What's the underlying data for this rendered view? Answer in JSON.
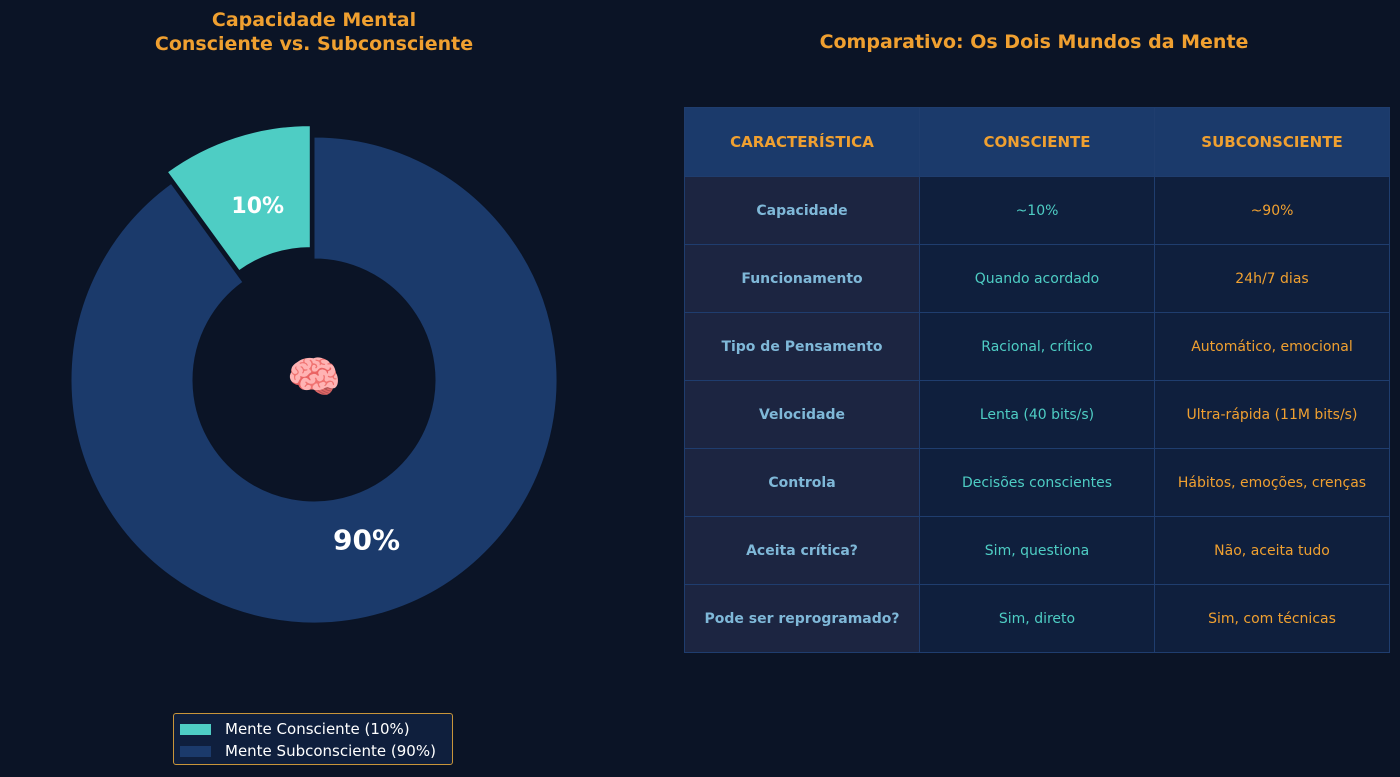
{
  "chart_data": {
    "type": "pie",
    "title": "Capacidade Mental\nConsciente vs. Subconsciente",
    "categories": [
      "Mente Consciente (10%)",
      "Mente Subconsciente (90%)"
    ],
    "values": [
      10,
      90
    ],
    "value_labels": [
      "10%",
      "90%"
    ],
    "colors": [
      "#4ecdc4",
      "#1b3a6b"
    ],
    "center_label": "🧠"
  },
  "table": {
    "title": "Comparativo: Os Dois Mundos da Mente",
    "header": [
      "CARACTERÍSTICA",
      "CONSCIENTE",
      "SUBCONSCIENTE"
    ],
    "rows": [
      [
        "Capacidade",
        "~10%",
        "~90%"
      ],
      [
        "Funcionamento",
        "Quando acordado",
        "24h/7 dias"
      ],
      [
        "Tipo de Pensamento",
        "Racional, crítico",
        "Automático, emocional"
      ],
      [
        "Velocidade",
        "Lenta (40 bits/s)",
        "Ultra-rápida (11M bits/s)"
      ],
      [
        "Controla",
        "Decisões conscientes",
        "Hábitos, emoções, crenças"
      ],
      [
        "Aceita crítica?",
        "Sim, questiona",
        "Não, aceita tudo"
      ],
      [
        "Pode ser reprogramado?",
        "Sim, direto",
        "Sim, com técnicas"
      ]
    ]
  }
}
